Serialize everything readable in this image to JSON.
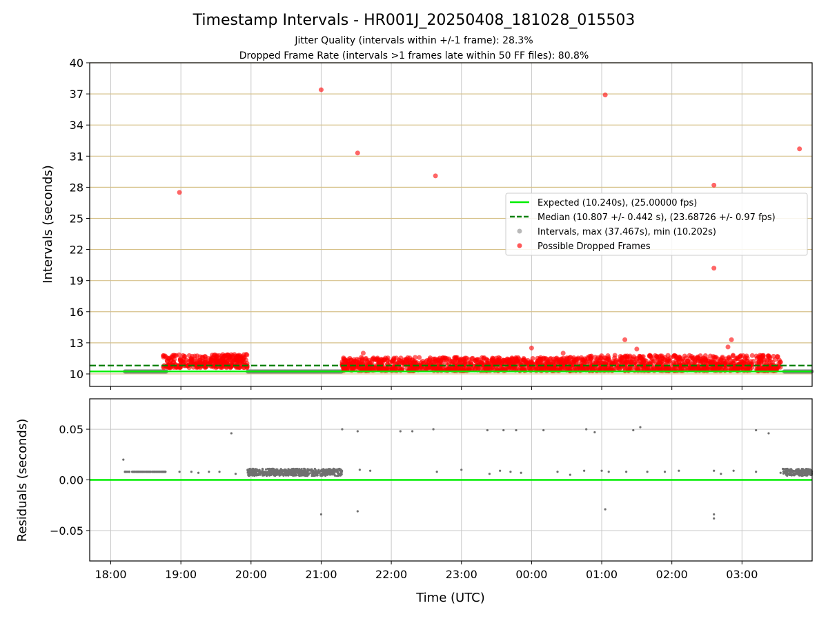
{
  "chart_data": [
    {
      "type": "scatter",
      "title": "Timestamp Intervals - HR001J_20250408_181028_015503",
      "subtitles": [
        "Jitter Quality (intervals within +/-1 frame): 28.3%",
        "Dropped Frame Rate (intervals >1 frames late within 50 FF files): 80.8%"
      ],
      "xlabel": "",
      "ylabel": "Intervals (seconds)",
      "x_range_hours": [
        17.7,
        28.0
      ],
      "ylim": [
        8.8,
        40
      ],
      "yticks": [
        10,
        13,
        16,
        19,
        22,
        25,
        28,
        31,
        34,
        37,
        40
      ],
      "grid": "on",
      "hlines": [
        {
          "name": "Expected (10.240s), (25.00000 fps)",
          "y": 10.24,
          "color": "#00ee00",
          "style": "solid"
        },
        {
          "name": "Median (10.807 +/- 0.442 s), (23.68726 +/- 0.97 fps)",
          "y": 10.807,
          "color": "#008000",
          "style": "dashed"
        }
      ],
      "legend": {
        "placement": "center-right",
        "entries": [
          {
            "label": "Expected (10.240s), (25.00000 fps)",
            "kind": "line",
            "color": "#00ee00"
          },
          {
            "label": "Median (10.807 +/- 0.442 s), (23.68726 +/- 0.97 fps)",
            "kind": "dashed",
            "color": "#008000"
          },
          {
            "label": "Intervals, max (37.467s), min (10.202s)",
            "kind": "dot",
            "color": "#808080"
          },
          {
            "label": "Possible Dropped Frames",
            "kind": "dot",
            "color": "#ff0000"
          }
        ]
      },
      "series": [
        {
          "name": "Intervals, max (37.467s), min (10.202s)",
          "color": "#808080",
          "segments": [
            {
              "x_range": [
                18.2,
                18.8
              ],
              "y": 10.24
            },
            {
              "x_range": [
                19.95,
                21.3
              ],
              "y": 10.24
            },
            {
              "x_range": [
                27.6,
                28.0
              ],
              "y": 10.24
            }
          ]
        },
        {
          "name": "Possible Dropped Frames",
          "color": "#ff0000",
          "clusters": [
            {
              "x_range": [
                18.75,
                19.95
              ],
              "y_range": [
                10.6,
                11.9
              ]
            },
            {
              "x_range": [
                21.3,
                24.8
              ],
              "y_range": [
                10.3,
                11.6
              ]
            },
            {
              "x_range": [
                24.8,
                27.55
              ],
              "y_range": [
                10.3,
                11.8
              ]
            }
          ],
          "points": [
            {
              "x": 18.98,
              "y": 27.5
            },
            {
              "x": 21.0,
              "y": 37.4
            },
            {
              "x": 21.52,
              "y": 31.3
            },
            {
              "x": 22.63,
              "y": 29.1
            },
            {
              "x": 25.05,
              "y": 36.9
            },
            {
              "x": 26.6,
              "y": 28.2
            },
            {
              "x": 26.6,
              "y": 20.2
            },
            {
              "x": 27.82,
              "y": 31.7
            },
            {
              "x": 25.33,
              "y": 13.3
            },
            {
              "x": 25.5,
              "y": 12.4
            },
            {
              "x": 26.85,
              "y": 13.3
            },
            {
              "x": 26.8,
              "y": 12.6
            },
            {
              "x": 24.0,
              "y": 12.5
            },
            {
              "x": 24.45,
              "y": 12.0
            },
            {
              "x": 21.6,
              "y": 12.0
            }
          ]
        }
      ]
    },
    {
      "type": "scatter",
      "title": "",
      "xlabel": "Time (UTC)",
      "ylabel": "Residuals (seconds)",
      "x_range_hours": [
        17.7,
        28.0
      ],
      "ylim": [
        -0.08,
        0.08
      ],
      "yticks": [
        -0.05,
        0.0,
        0.05
      ],
      "ytick_labels": [
        "−0.05",
        "0.00",
        "0.05"
      ],
      "xtick_labels": [
        "18:00",
        "19:00",
        "20:00",
        "21:00",
        "22:00",
        "23:00",
        "00:00",
        "01:00",
        "02:00",
        "03:00"
      ],
      "grid": "on",
      "hlines": [
        {
          "y": 0.0,
          "color": "#00ee00",
          "style": "solid"
        }
      ],
      "series": [
        {
          "name": "",
          "color": "#808080",
          "bands": [
            {
              "x_range": [
                18.2,
                18.78
              ],
              "y": 0.008
            },
            {
              "x_range": [
                19.95,
                21.3
              ],
              "y_range": [
                0.004,
                0.011
              ]
            },
            {
              "x_range": [
                27.57,
                28.0
              ],
              "y_range": [
                0.004,
                0.011
              ]
            }
          ],
          "points": [
            {
              "x": 18.18,
              "y": 0.02
            },
            {
              "x": 18.98,
              "y": 0.008
            },
            {
              "x": 19.15,
              "y": 0.008
            },
            {
              "x": 19.25,
              "y": 0.007
            },
            {
              "x": 19.4,
              "y": 0.008
            },
            {
              "x": 19.55,
              "y": 0.008
            },
            {
              "x": 19.72,
              "y": 0.046
            },
            {
              "x": 19.78,
              "y": 0.006
            },
            {
              "x": 21.0,
              "y": -0.034
            },
            {
              "x": 21.3,
              "y": 0.05
            },
            {
              "x": 21.52,
              "y": 0.048
            },
            {
              "x": 21.52,
              "y": -0.031
            },
            {
              "x": 21.55,
              "y": 0.01
            },
            {
              "x": 21.7,
              "y": 0.009
            },
            {
              "x": 22.13,
              "y": 0.048
            },
            {
              "x": 22.3,
              "y": 0.048
            },
            {
              "x": 22.6,
              "y": 0.05
            },
            {
              "x": 22.65,
              "y": 0.008
            },
            {
              "x": 23.0,
              "y": 0.01
            },
            {
              "x": 23.37,
              "y": 0.049
            },
            {
              "x": 23.6,
              "y": 0.049
            },
            {
              "x": 23.78,
              "y": 0.049
            },
            {
              "x": 23.4,
              "y": 0.006
            },
            {
              "x": 23.55,
              "y": 0.009
            },
            {
              "x": 23.7,
              "y": 0.008
            },
            {
              "x": 23.85,
              "y": 0.007
            },
            {
              "x": 24.17,
              "y": 0.049
            },
            {
              "x": 24.37,
              "y": 0.008
            },
            {
              "x": 24.55,
              "y": 0.005
            },
            {
              "x": 24.75,
              "y": 0.009
            },
            {
              "x": 24.78,
              "y": 0.05
            },
            {
              "x": 24.9,
              "y": 0.047
            },
            {
              "x": 25.0,
              "y": 0.009
            },
            {
              "x": 25.05,
              "y": -0.029
            },
            {
              "x": 25.1,
              "y": 0.008
            },
            {
              "x": 25.35,
              "y": 0.008
            },
            {
              "x": 25.45,
              "y": 0.049
            },
            {
              "x": 25.55,
              "y": 0.052
            },
            {
              "x": 25.65,
              "y": 0.008
            },
            {
              "x": 25.9,
              "y": 0.008
            },
            {
              "x": 26.1,
              "y": 0.009
            },
            {
              "x": 26.6,
              "y": 0.009
            },
            {
              "x": 26.6,
              "y": -0.034
            },
            {
              "x": 26.6,
              "y": -0.038
            },
            {
              "x": 26.7,
              "y": 0.006
            },
            {
              "x": 26.88,
              "y": 0.009
            },
            {
              "x": 27.2,
              "y": 0.049
            },
            {
              "x": 27.2,
              "y": 0.008
            },
            {
              "x": 27.38,
              "y": 0.046
            },
            {
              "x": 27.55,
              "y": 0.007
            }
          ]
        }
      ]
    }
  ]
}
